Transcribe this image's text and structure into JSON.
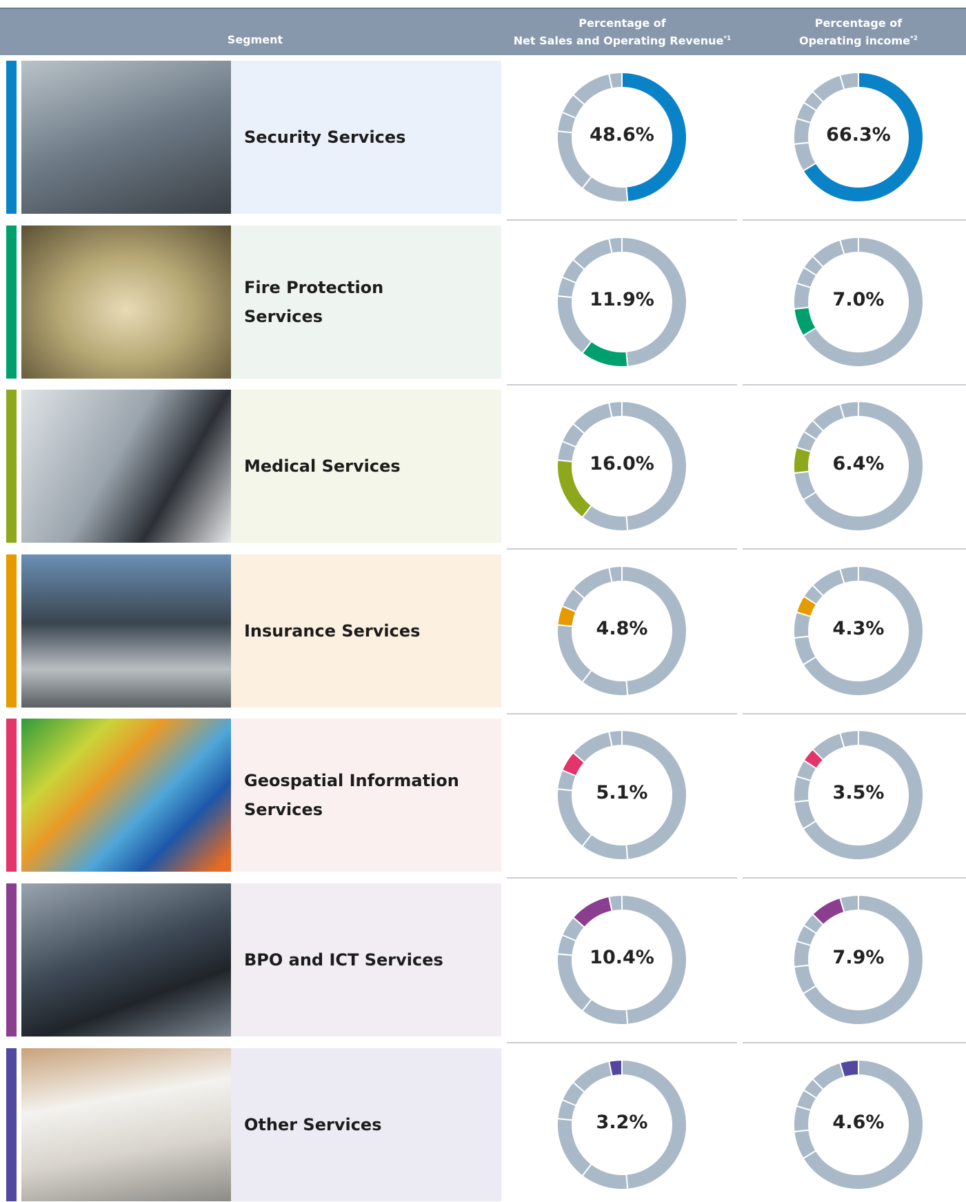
{
  "header": {
    "segment": "Segment",
    "col1_lines": [
      "Percentage of",
      "Net Sales and Operating Revenue"
    ],
    "col1_note": "*1",
    "col2_lines": [
      "Percentage of",
      "Operating income"
    ],
    "col2_note": "*2"
  },
  "rest_color": "#a9b9c7",
  "rows": [
    {
      "name": "Security Services",
      "color": "#0a82c8",
      "bg": "#eaf1fa",
      "sales": 48.6,
      "sales_label": "48.6%",
      "income": 66.3,
      "income_label": "66.3%"
    },
    {
      "name": "Fire Protection Services",
      "color": "#00a06e",
      "bg": "#eef5f0",
      "sales": 11.9,
      "sales_label": "11.9%",
      "income": 7,
      "income_label": "7.0%"
    },
    {
      "name": "Medical Services",
      "color": "#8ea81e",
      "bg": "#f4f6ea",
      "sales": 16,
      "sales_label": "16.0%",
      "income": 6.4,
      "income_label": "6.4%"
    },
    {
      "name": "Insurance Services",
      "color": "#e59b00",
      "bg": "#fcf1e1",
      "sales": 4.8,
      "sales_label": "4.8%",
      "income": 4.3,
      "income_label": "4.3%"
    },
    {
      "name": "Geospatial Information Services",
      "color": "#e3346c",
      "bg": "#fbf0f0",
      "sales": 5.1,
      "sales_label": "5.1%",
      "income": 3.5,
      "income_label": "3.5%"
    },
    {
      "name": "BPO and ICT Services",
      "color": "#8b3d8f",
      "bg": "#f1edf3",
      "sales": 10.4,
      "sales_label": "10.4%",
      "income": 7.9,
      "income_label": "7.9%"
    },
    {
      "name": "Other Services",
      "color": "#5248a0",
      "bg": "#ecebf4",
      "sales": 3.2,
      "sales_label": "3.2%",
      "income": 4.6,
      "income_label": "4.6%"
    }
  ]
}
